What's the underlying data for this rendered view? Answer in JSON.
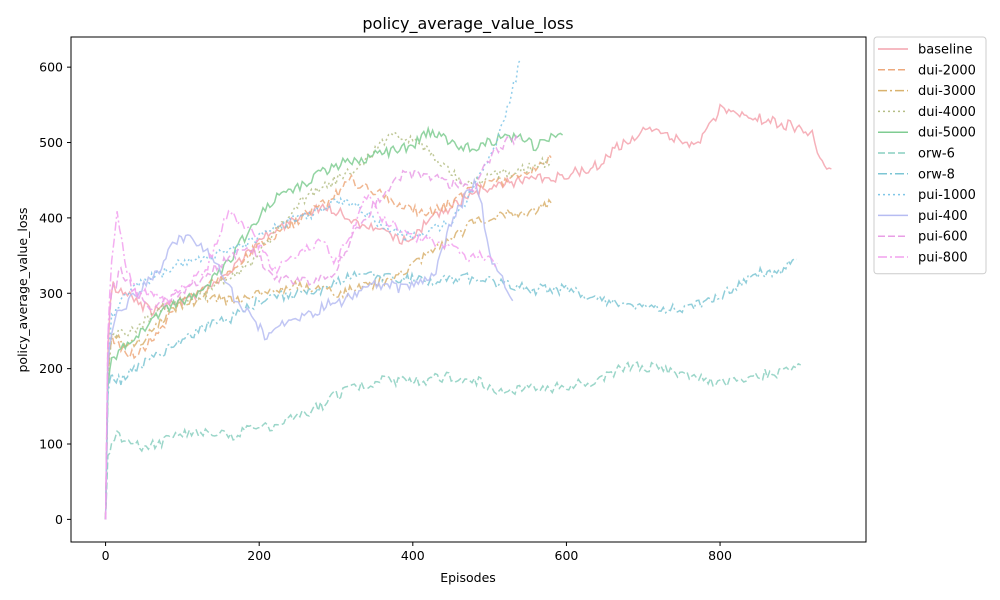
{
  "chart_data": {
    "type": "line",
    "title": "policy_average_value_loss",
    "xlabel": "Episodes",
    "ylabel": "policy_average_value_loss",
    "xlim": [
      -45,
      990
    ],
    "ylim": [
      -30,
      640
    ],
    "xticks": [
      0,
      200,
      400,
      600,
      800
    ],
    "yticks": [
      0,
      100,
      200,
      300,
      400,
      500,
      600
    ],
    "grid": false,
    "legend_position": "outside-right-top",
    "series": [
      {
        "name": "baseline",
        "color": "#f4a3ae",
        "dash": "solid",
        "x": [
          0,
          3,
          6,
          10,
          20,
          40,
          60,
          80,
          100,
          120,
          150,
          180,
          200,
          230,
          260,
          280,
          300,
          320,
          340,
          360,
          380,
          400,
          420,
          440,
          460,
          480,
          500,
          520,
          540,
          560,
          580,
          600,
          620,
          640,
          660,
          680,
          700,
          720,
          740,
          760,
          780,
          800,
          820,
          840,
          860,
          880,
          900,
          920,
          930,
          945
        ],
        "y": [
          0,
          220,
          290,
          310,
          305,
          290,
          275,
          285,
          290,
          300,
          320,
          345,
          370,
          390,
          400,
          415,
          410,
          395,
          390,
          385,
          370,
          375,
          395,
          410,
          420,
          435,
          440,
          445,
          450,
          452,
          450,
          458,
          462,
          470,
          490,
          500,
          515,
          520,
          505,
          495,
          510,
          545,
          540,
          535,
          530,
          525,
          520,
          510,
          480,
          465
        ]
      },
      {
        "name": "dui-2000",
        "color": "#eda97d",
        "dash": "dash",
        "x": [
          0,
          3,
          8,
          20,
          40,
          60,
          80,
          100,
          120,
          150,
          180,
          200,
          230,
          260,
          280,
          300,
          320,
          340,
          360,
          380,
          400,
          420,
          440,
          460,
          480,
          500,
          520,
          540,
          560,
          580
        ],
        "y": [
          0,
          200,
          245,
          225,
          215,
          240,
          265,
          290,
          300,
          320,
          345,
          365,
          380,
          405,
          415,
          430,
          450,
          440,
          430,
          420,
          410,
          405,
          415,
          425,
          440,
          445,
          450,
          455,
          465,
          480
        ]
      },
      {
        "name": "dui-3000",
        "color": "#d9b26e",
        "dash": "dashdot",
        "x": [
          0,
          3,
          8,
          20,
          40,
          60,
          80,
          100,
          130,
          160,
          190,
          220,
          250,
          280,
          300,
          330,
          360,
          390,
          420,
          450,
          480,
          500,
          520,
          540,
          560,
          580
        ],
        "y": [
          0,
          190,
          250,
          235,
          230,
          250,
          270,
          285,
          295,
          290,
          295,
          305,
          310,
          305,
          300,
          305,
          315,
          330,
          350,
          370,
          395,
          400,
          405,
          405,
          410,
          420
        ]
      },
      {
        "name": "dui-4000",
        "color": "#b5be86",
        "dash": "dot",
        "x": [
          0,
          3,
          8,
          20,
          40,
          60,
          80,
          100,
          130,
          160,
          190,
          220,
          250,
          280,
          300,
          330,
          360,
          380,
          400,
          420,
          440,
          460,
          480,
          500,
          520,
          540,
          560,
          580
        ],
        "y": [
          0,
          185,
          250,
          245,
          255,
          270,
          285,
          290,
          300,
          320,
          340,
          380,
          420,
          440,
          450,
          470,
          500,
          510,
          505,
          490,
          470,
          450,
          445,
          455,
          460,
          465,
          470,
          475
        ]
      },
      {
        "name": "dui-5000",
        "color": "#7fcc92",
        "dash": "solid",
        "x": [
          0,
          3,
          8,
          20,
          40,
          60,
          80,
          100,
          130,
          160,
          190,
          220,
          250,
          280,
          300,
          330,
          360,
          380,
          400,
          420,
          440,
          460,
          480,
          500,
          520,
          540,
          560,
          580,
          595
        ],
        "y": [
          0,
          180,
          210,
          225,
          240,
          265,
          280,
          290,
          310,
          340,
          390,
          425,
          440,
          460,
          470,
          478,
          485,
          490,
          495,
          515,
          505,
          490,
          495,
          500,
          510,
          505,
          495,
          505,
          510
        ]
      },
      {
        "name": "orw-6",
        "color": "#89cfc0",
        "dash": "dash",
        "x": [
          0,
          3,
          8,
          15,
          30,
          50,
          70,
          100,
          130,
          160,
          190,
          220,
          250,
          280,
          300,
          330,
          360,
          390,
          420,
          450,
          480,
          500,
          530,
          560,
          600,
          640,
          680,
          720,
          760,
          800,
          840,
          880,
          905
        ],
        "y": [
          0,
          80,
          100,
          110,
          100,
          95,
          100,
          115,
          115,
          110,
          120,
          125,
          135,
          150,
          165,
          175,
          185,
          182,
          185,
          190,
          185,
          175,
          170,
          175,
          175,
          185,
          205,
          200,
          190,
          180,
          190,
          195,
          205
        ]
      },
      {
        "name": "orw-8",
        "color": "#7cc6d4",
        "dash": "dashdot",
        "x": [
          0,
          3,
          8,
          20,
          40,
          60,
          80,
          100,
          130,
          160,
          190,
          220,
          250,
          280,
          300,
          330,
          360,
          390,
          420,
          450,
          480,
          500,
          530,
          560,
          600,
          640,
          680,
          720,
          760,
          800,
          840,
          880,
          900
        ],
        "y": [
          0,
          170,
          190,
          185,
          200,
          215,
          225,
          240,
          255,
          265,
          285,
          295,
          300,
          305,
          315,
          325,
          320,
          320,
          315,
          320,
          320,
          315,
          310,
          305,
          305,
          290,
          285,
          280,
          280,
          295,
          325,
          330,
          345
        ]
      },
      {
        "name": "pui-1000",
        "color": "#7fc6e8",
        "dash": "dot",
        "x": [
          0,
          3,
          8,
          20,
          40,
          60,
          80,
          100,
          130,
          160,
          190,
          220,
          250,
          280,
          300,
          330,
          360,
          390,
          420,
          450,
          480,
          500,
          520,
          540
        ],
        "y": [
          0,
          200,
          270,
          290,
          310,
          320,
          330,
          340,
          350,
          355,
          370,
          385,
          400,
          410,
          425,
          415,
          390,
          375,
          380,
          395,
          440,
          480,
          530,
          610
        ]
      },
      {
        "name": "pui-400",
        "color": "#b6bcf2",
        "dash": "solid",
        "x": [
          0,
          3,
          8,
          15,
          30,
          50,
          70,
          90,
          110,
          130,
          150,
          170,
          190,
          210,
          230,
          250,
          270,
          290,
          310,
          330,
          350,
          370,
          390,
          410,
          430,
          450,
          470,
          480,
          490,
          500,
          510,
          520,
          530
        ],
        "y": [
          0,
          200,
          250,
          270,
          290,
          310,
          330,
          370,
          375,
          360,
          330,
          290,
          270,
          240,
          260,
          265,
          275,
          285,
          290,
          300,
          310,
          310,
          305,
          315,
          330,
          395,
          430,
          445,
          415,
          350,
          330,
          310,
          290
        ]
      },
      {
        "name": "pui-600",
        "color": "#e99ee6",
        "dash": "dash",
        "x": [
          0,
          3,
          8,
          20,
          40,
          60,
          80,
          100,
          130,
          160,
          190,
          220,
          250,
          280,
          300,
          330,
          360,
          390,
          420,
          450,
          480,
          500,
          520,
          540
        ],
        "y": [
          0,
          250,
          300,
          330,
          300,
          280,
          290,
          300,
          320,
          350,
          360,
          320,
          315,
          320,
          330,
          390,
          430,
          460,
          455,
          445,
          440,
          480,
          500,
          505
        ]
      },
      {
        "name": "pui-800",
        "color": "#f2a0ee",
        "dash": "dashdot",
        "x": [
          0,
          3,
          8,
          15,
          25,
          40,
          60,
          80,
          100,
          130,
          160,
          190,
          220,
          250,
          280,
          300,
          320,
          340,
          360,
          390,
          420,
          450,
          470,
          490,
          510
        ],
        "y": [
          0,
          240,
          350,
          410,
          340,
          300,
          300,
          290,
          310,
          330,
          410,
          380,
          330,
          350,
          370,
          340,
          380,
          430,
          400,
          380,
          370,
          360,
          345,
          350,
          340
        ]
      }
    ]
  }
}
